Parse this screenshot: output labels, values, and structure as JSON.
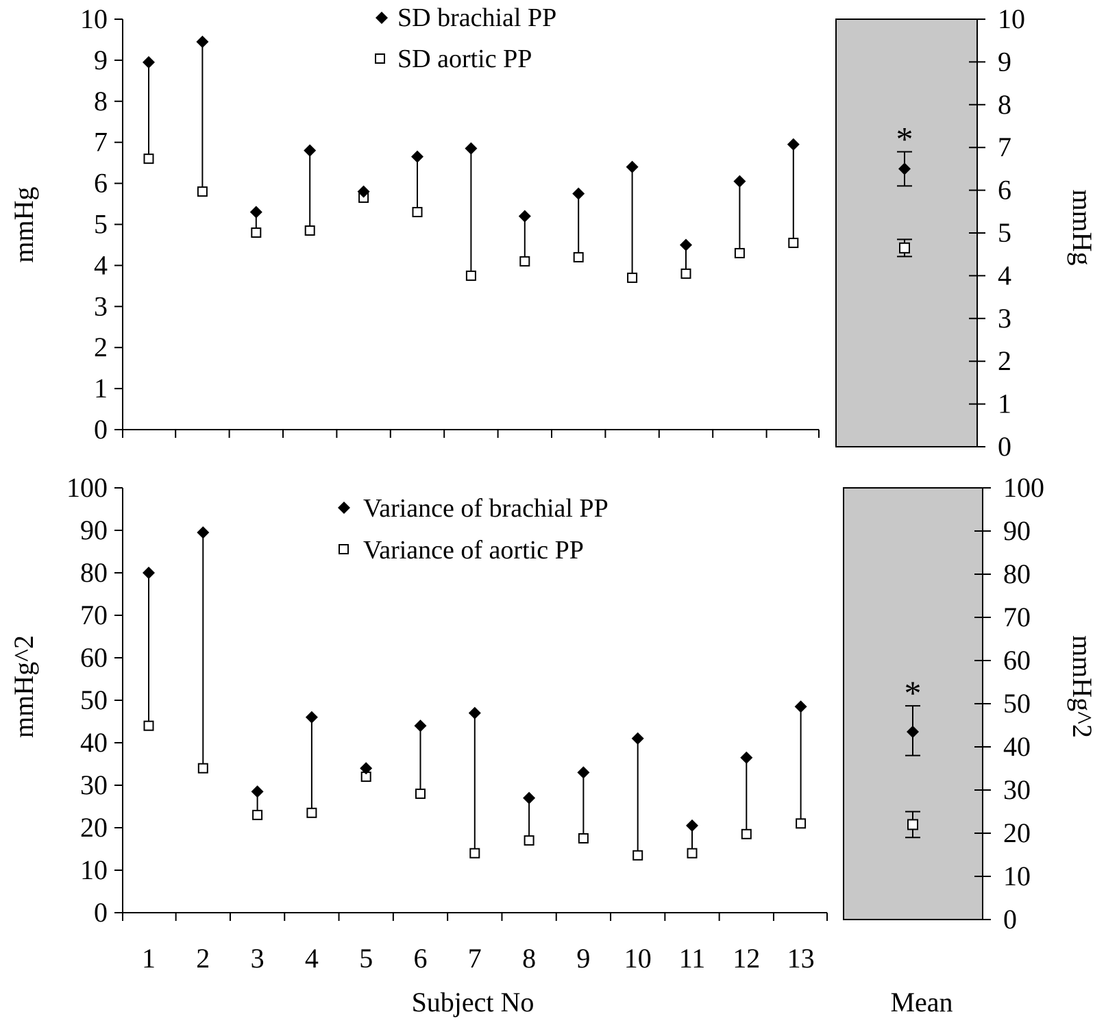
{
  "chart_data": [
    {
      "type": "scatter",
      "ylabel": "mmHg",
      "ylabel_right": "mmHg",
      "ylim": [
        0,
        10
      ],
      "yticks": [
        "0",
        "1",
        "2",
        "3",
        "4",
        "5",
        "6",
        "7",
        "8",
        "9",
        "10"
      ],
      "x": [
        1,
        2,
        3,
        4,
        5,
        6,
        7,
        8,
        9,
        10,
        11,
        12,
        13
      ],
      "series": [
        {
          "name": "SD brachial PP",
          "marker": "filled-diamond",
          "values": [
            8.95,
            9.45,
            5.3,
            6.8,
            5.8,
            6.65,
            6.85,
            5.2,
            5.75,
            6.4,
            4.5,
            6.05,
            6.95
          ]
        },
        {
          "name": "SD aortic PP",
          "marker": "open-square",
          "values": [
            6.6,
            5.8,
            4.8,
            4.85,
            5.65,
            5.3,
            3.75,
            4.1,
            4.2,
            3.7,
            3.8,
            4.3,
            4.55
          ]
        }
      ],
      "mean_panel": {
        "brachial_mean": 6.5,
        "brachial_error": [
          6.1,
          6.9
        ],
        "aortic_mean": 4.65,
        "aortic_error": [
          4.45,
          4.85
        ],
        "annotation": "*"
      }
    },
    {
      "type": "scatter",
      "ylabel": "mmHg^2",
      "ylabel_right": "mmHg^2",
      "ylim": [
        0,
        100
      ],
      "yticks": [
        "0",
        "10",
        "20",
        "30",
        "40",
        "50",
        "60",
        "70",
        "80",
        "90",
        "100"
      ],
      "x": [
        1,
        2,
        3,
        4,
        5,
        6,
        7,
        8,
        9,
        10,
        11,
        12,
        13
      ],
      "series": [
        {
          "name": "Variance of brachial PP",
          "marker": "filled-diamond",
          "values": [
            80,
            89.5,
            28.5,
            46,
            34,
            44,
            47,
            27,
            33,
            41,
            20.5,
            36.5,
            48.5
          ]
        },
        {
          "name": "Variance of aortic PP",
          "marker": "open-square",
          "values": [
            44,
            34,
            23,
            23.5,
            32,
            28,
            14,
            17,
            17.5,
            13.5,
            14,
            18.5,
            21
          ]
        }
      ],
      "mean_panel": {
        "brachial_mean": 43.5,
        "brachial_error": [
          38,
          49.5
        ],
        "aortic_mean": 22,
        "aortic_error": [
          19,
          25
        ],
        "annotation": "*"
      }
    }
  ],
  "xlabel": "Subject No",
  "mean_label": "Mean",
  "xtick_labels": [
    "1",
    "2",
    "3",
    "4",
    "5",
    "6",
    "7",
    "8",
    "9",
    "10",
    "11",
    "12",
    "13"
  ],
  "colors": {
    "mean_panel_fill": "#c8c8c8",
    "ink": "#000000"
  }
}
